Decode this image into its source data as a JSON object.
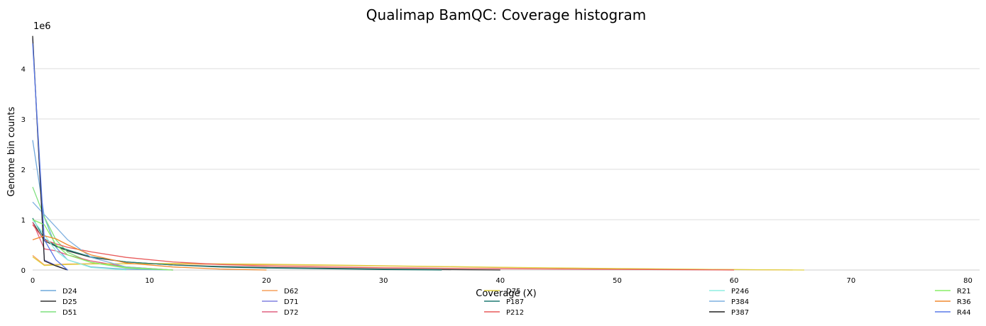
{
  "chart_data": {
    "type": "line",
    "title": "Qualimap BamQC: Coverage histogram",
    "xlabel": "Coverage (X)",
    "ylabel": "Genome bin counts",
    "y_offset_label": "1e6",
    "xlim": [
      0,
      81
    ],
    "ylim": [
      0,
      4800000
    ],
    "x_ticks": [
      0,
      10,
      20,
      30,
      40,
      50,
      60,
      70,
      80
    ],
    "y_ticks": [
      0,
      1000000,
      2000000,
      3000000,
      4000000
    ],
    "y_tick_labels": [
      "0",
      "1",
      "2",
      "3",
      "4"
    ],
    "grid": "horizontal",
    "legend_position": "bottom",
    "series": [
      {
        "name": "D24",
        "color": "#6fa8dc",
        "x": [
          0,
          1,
          2,
          3,
          5,
          8,
          12
        ],
        "y": [
          2580000,
          1050000,
          450000,
          200000,
          60000,
          15000,
          0
        ]
      },
      {
        "name": "D25",
        "color": "#333333",
        "x": [
          0,
          1,
          2,
          3,
          5,
          8,
          12,
          16,
          20,
          25,
          30,
          35,
          40
        ],
        "y": [
          950000,
          580000,
          470000,
          380000,
          250000,
          160000,
          100000,
          70000,
          50000,
          35000,
          20000,
          10000,
          0
        ]
      },
      {
        "name": "D51",
        "color": "#7fe07f",
        "x": [
          0,
          1,
          2,
          3,
          5,
          8,
          12
        ],
        "y": [
          1650000,
          1050000,
          600000,
          350000,
          150000,
          40000,
          0
        ]
      },
      {
        "name": "D62",
        "color": "#f5a05c",
        "x": [
          0,
          1,
          3,
          5,
          8,
          12,
          20,
          30,
          40,
          50,
          60,
          65
        ],
        "y": [
          290000,
          100000,
          120000,
          125000,
          125000,
          120000,
          105000,
          80000,
          50000,
          25000,
          8000,
          0
        ]
      },
      {
        "name": "D71",
        "color": "#8080e0",
        "x": [
          0,
          1,
          2,
          3
        ],
        "y": [
          4600000,
          200000,
          90000,
          0
        ]
      },
      {
        "name": "D72",
        "color": "#e06080",
        "x": [
          0,
          1,
          2,
          3,
          5,
          8,
          12
        ],
        "y": [
          950000,
          420000,
          380000,
          300000,
          180000,
          60000,
          0
        ]
      },
      {
        "name": "D75",
        "color": "#e0d040",
        "x": [
          0,
          1,
          3,
          5,
          8,
          12,
          20,
          30,
          40,
          50,
          60,
          66
        ],
        "y": [
          260000,
          90000,
          110000,
          120000,
          125000,
          130000,
          115000,
          85000,
          55000,
          30000,
          8000,
          0
        ]
      },
      {
        "name": "P187",
        "color": "#1e7a72",
        "x": [
          0,
          1,
          2,
          3,
          5,
          8,
          12,
          16,
          20,
          25,
          30,
          35
        ],
        "y": [
          1030000,
          620000,
          480000,
          400000,
          260000,
          160000,
          100000,
          60000,
          40000,
          25000,
          10000,
          0
        ]
      },
      {
        "name": "P212",
        "color": "#e85a5a",
        "x": [
          0,
          1,
          2,
          3,
          5,
          8,
          12,
          16,
          20,
          25,
          30,
          35,
          40,
          50,
          60
        ],
        "y": [
          900000,
          600000,
          520000,
          450000,
          360000,
          250000,
          160000,
          110000,
          80000,
          60000,
          45000,
          35000,
          25000,
          12000,
          0
        ]
      },
      {
        "name": "P246",
        "color": "#8eeee0",
        "x": [
          0,
          1,
          2,
          3,
          5,
          8
        ],
        "y": [
          1000000,
          700000,
          380000,
          200000,
          50000,
          0
        ]
      },
      {
        "name": "P384",
        "color": "#7fb0e0",
        "x": [
          0,
          1,
          2,
          3,
          5,
          8,
          12
        ],
        "y": [
          1350000,
          1100000,
          850000,
          600000,
          250000,
          60000,
          0
        ]
      },
      {
        "name": "P387",
        "color": "#222222",
        "x": [
          0,
          1,
          2,
          3
        ],
        "y": [
          4650000,
          180000,
          80000,
          0
        ]
      },
      {
        "name": "R21",
        "color": "#88ee66",
        "x": [
          0,
          1,
          2,
          3,
          5,
          8,
          12
        ],
        "y": [
          1000000,
          900000,
          500000,
          300000,
          150000,
          50000,
          0
        ]
      },
      {
        "name": "R36",
        "color": "#f08a30",
        "x": [
          0,
          1,
          2,
          3,
          5,
          8,
          12,
          16,
          20
        ],
        "y": [
          600000,
          680000,
          620000,
          500000,
          300000,
          140000,
          60000,
          20000,
          0
        ]
      },
      {
        "name": "R44",
        "color": "#5a7ae8",
        "x": [
          0,
          1,
          2,
          3
        ],
        "y": [
          4500000,
          600000,
          200000,
          0
        ]
      }
    ]
  }
}
